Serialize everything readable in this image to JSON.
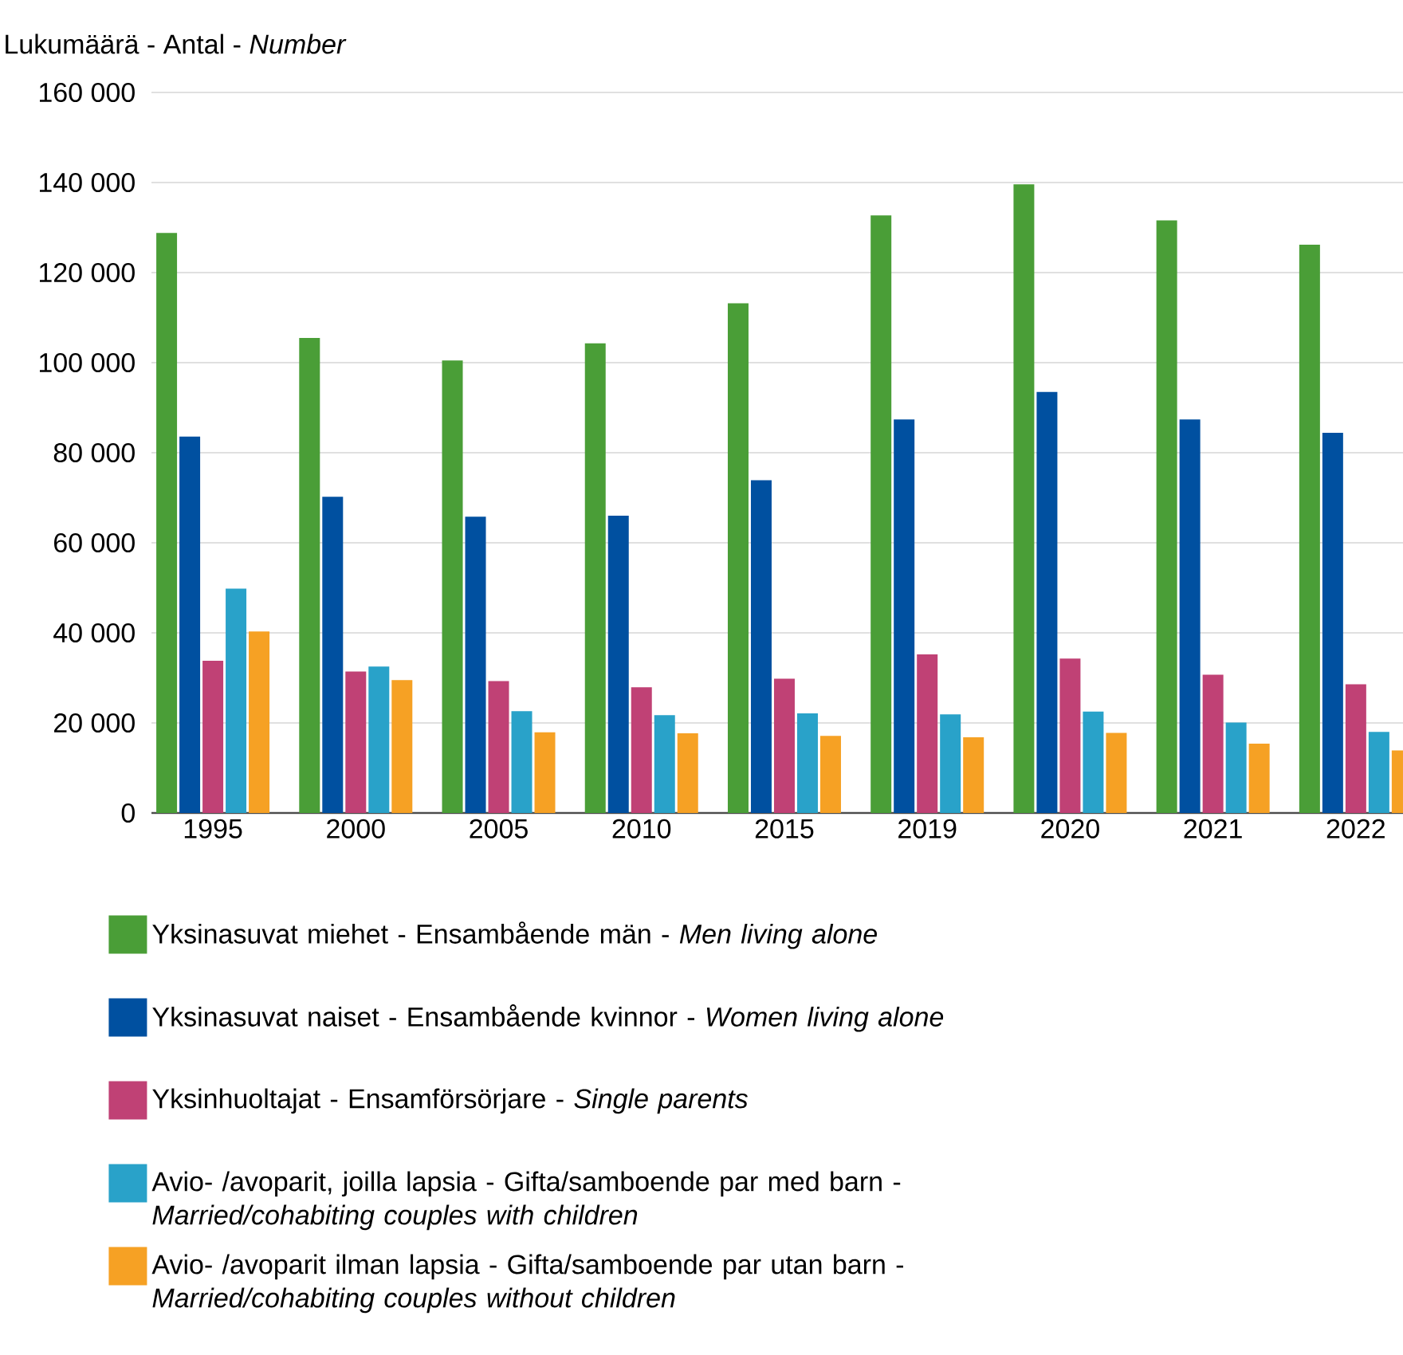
{
  "chart_data": {
    "type": "bar",
    "ylabel": "Lukumäärä - Antal - *Number*",
    "categories": [
      "1995",
      "2000",
      "2005",
      "2010",
      "2015",
      "2019",
      "2020",
      "2021",
      "2022"
    ],
    "series": [
      {
        "name": "Yksinasuvat miehet - Ensambående män - *Men living alone*",
        "color": "#4a9e37",
        "values": [
          128800,
          105500,
          100500,
          104300,
          113200,
          132700,
          139600,
          131600,
          126200
        ]
      },
      {
        "name": "Yksinasuvat naiset - Ensambående kvinnor - *Women living alone*",
        "color": "#0050a0",
        "values": [
          83600,
          70200,
          65800,
          66000,
          73900,
          87400,
          93500,
          87400,
          84400
        ]
      },
      {
        "name": "Yksinhuoltajat - Ensamförsörjare - *Single parents*",
        "color": "#c04175",
        "values": [
          33800,
          31400,
          29300,
          27900,
          29800,
          35200,
          34300,
          30700,
          28600
        ]
      },
      {
        "name": "Avio- /avoparit, joilla lapsia - Gifta/samboende par med barn - *Married/cohabiting couples with children*",
        "color": "#29a2c9",
        "values": [
          49800,
          32500,
          22600,
          21700,
          22100,
          21900,
          22500,
          20100,
          18000
        ]
      },
      {
        "name": "Avio- /avoparit ilman lapsia - Gifta/samboende par utan barn - *Married/cohabiting couples without children*",
        "color": "#f6a124",
        "values": [
          40300,
          29500,
          17900,
          17700,
          17100,
          16800,
          17800,
          15400,
          13900
        ]
      }
    ],
    "ylim": [
      0,
      160000
    ],
    "yticks": [
      {
        "value": 0,
        "label": "0"
      },
      {
        "value": 20000,
        "label": "20 000"
      },
      {
        "value": 40000,
        "label": "40 000"
      },
      {
        "value": 60000,
        "label": "60 000"
      },
      {
        "value": 80000,
        "label": "80 000"
      },
      {
        "value": 100000,
        "label": "100 000"
      },
      {
        "value": 120000,
        "label": "120 000"
      },
      {
        "value": 140000,
        "label": "140 000"
      },
      {
        "value": 160000,
        "label": "160 000"
      }
    ],
    "grid": "y",
    "legend": "bottom"
  }
}
